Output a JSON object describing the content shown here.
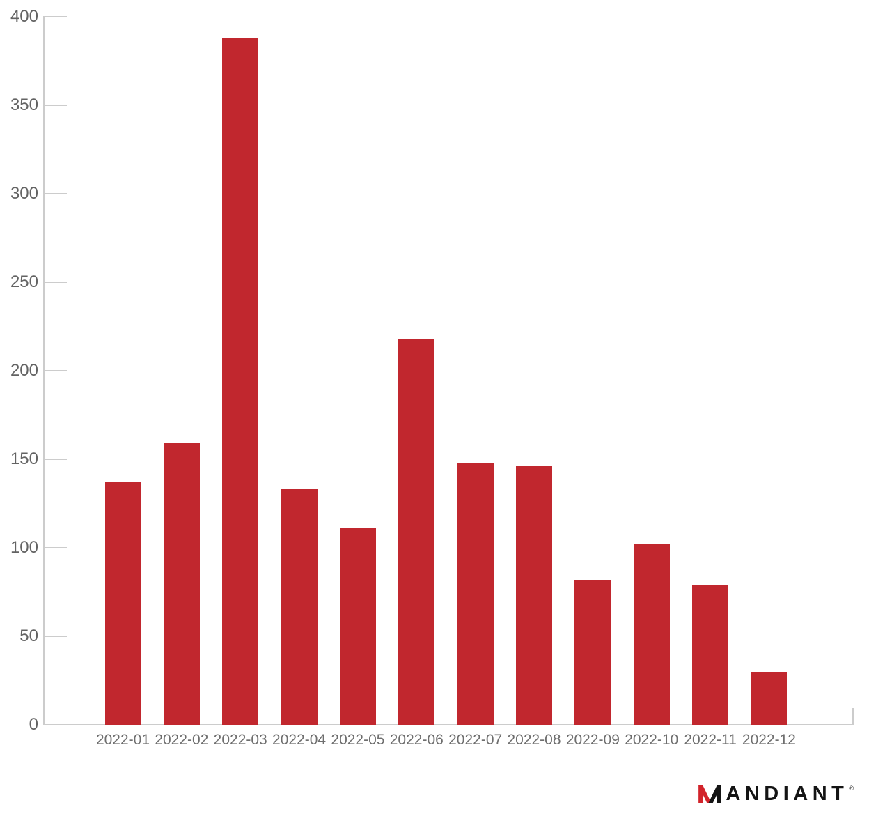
{
  "chart_data": {
    "type": "bar",
    "title": "",
    "xlabel": "",
    "ylabel": "",
    "categories": [
      "2022-01",
      "2022-02",
      "2022-03",
      "2022-04",
      "2022-05",
      "2022-06",
      "2022-07",
      "2022-08",
      "2022-09",
      "2022-10",
      "2022-11",
      "2022-12"
    ],
    "values": [
      137,
      159,
      388,
      133,
      111,
      218,
      148,
      146,
      82,
      102,
      79,
      30
    ],
    "ylim": [
      0,
      400
    ],
    "yticks": [
      0,
      50,
      100,
      150,
      200,
      250,
      300,
      350,
      400
    ],
    "grid": false,
    "legend": "none",
    "bar_color": "#c1272e",
    "axis_color": "#cccccc",
    "y_label_color": "#636363",
    "x_label_color": "#6e6e6e"
  },
  "branding": {
    "logo_text_rest": "ANDIANT",
    "registered_mark": "®",
    "logo_m_red": "#d2232a",
    "logo_black": "#141414"
  }
}
